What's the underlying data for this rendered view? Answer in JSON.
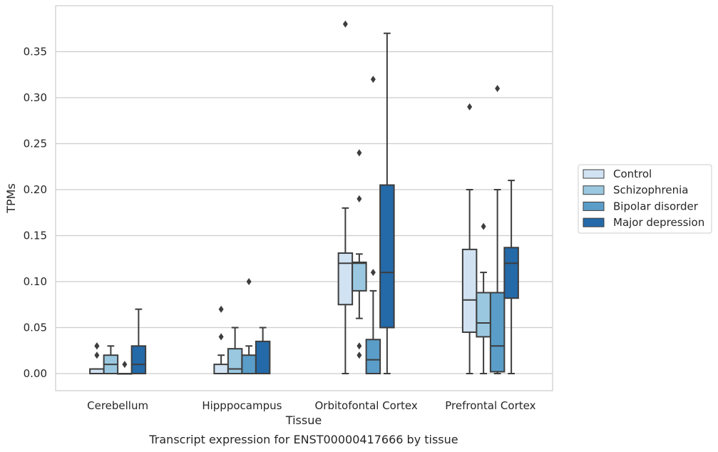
{
  "chart_data": {
    "type": "box",
    "xlabel": "Tissue",
    "ylabel": "TPMs",
    "caption": "Transcript expression for ENST00000417666 by tissue",
    "ylim": [
      -0.018,
      0.398
    ],
    "yticks": [
      "0.00",
      "0.05",
      "0.10",
      "0.15",
      "0.20",
      "0.25",
      "0.30",
      "0.35"
    ],
    "grid": "horizontal",
    "legend_position": "right",
    "categories": [
      "Cerebellum",
      "Hipppocampus",
      "Orbitofontal Cortex",
      "Prefrontal Cortex"
    ],
    "series": [
      {
        "name": "Control",
        "color": "#d1e2f2",
        "boxes": [
          {
            "q1": 0.0,
            "median": 0.0,
            "q3": 0.005,
            "whislo": 0.0,
            "whishi": 0.005,
            "fliers": [
              0.03,
              0.02,
              0.03
            ]
          },
          {
            "q1": 0.0,
            "median": 0.0,
            "q3": 0.01,
            "whislo": 0.0,
            "whishi": 0.02,
            "fliers": [
              0.04,
              0.07
            ]
          },
          {
            "q1": 0.075,
            "median": 0.12,
            "q3": 0.131,
            "whislo": 0.0,
            "whishi": 0.18,
            "fliers": [
              0.38
            ]
          },
          {
            "q1": 0.045,
            "median": 0.08,
            "q3": 0.135,
            "whislo": 0.0,
            "whishi": 0.2,
            "fliers": [
              0.29
            ]
          }
        ]
      },
      {
        "name": "Schizophrenia",
        "color": "#9ac8e0",
        "boxes": [
          {
            "q1": 0.0,
            "median": 0.01,
            "q3": 0.02,
            "whislo": 0.0,
            "whishi": 0.03,
            "fliers": []
          },
          {
            "q1": 0.0,
            "median": 0.005,
            "q3": 0.027,
            "whislo": 0.0,
            "whishi": 0.05,
            "fliers": []
          },
          {
            "q1": 0.09,
            "median": 0.12,
            "q3": 0.121,
            "whislo": 0.06,
            "whishi": 0.13,
            "fliers": [
              0.24,
              0.19,
              0.03,
              0.02
            ]
          },
          {
            "q1": 0.04,
            "median": 0.055,
            "q3": 0.088,
            "whislo": 0.0,
            "whishi": 0.11,
            "fliers": [
              0.16
            ]
          }
        ]
      },
      {
        "name": "Bipolar disorder",
        "color": "#5a9dc9",
        "boxes": [
          {
            "q1": 0.0,
            "median": 0.0,
            "q3": 0.0,
            "whislo": 0.0,
            "whishi": 0.0,
            "fliers": [
              0.01
            ]
          },
          {
            "q1": 0.0,
            "median": 0.0,
            "q3": 0.02,
            "whislo": 0.0,
            "whishi": 0.03,
            "fliers": [
              0.1
            ]
          },
          {
            "q1": 0.0,
            "median": 0.015,
            "q3": 0.037,
            "whislo": 0.0,
            "whishi": 0.09,
            "fliers": [
              0.32,
              0.11
            ]
          },
          {
            "q1": 0.002,
            "median": 0.03,
            "q3": 0.088,
            "whislo": 0.0,
            "whishi": 0.2,
            "fliers": [
              0.31
            ]
          }
        ]
      },
      {
        "name": "Major depression",
        "color": "#2469a8",
        "boxes": [
          {
            "q1": 0.0,
            "median": 0.01,
            "q3": 0.03,
            "whislo": 0.0,
            "whishi": 0.07,
            "fliers": []
          },
          {
            "q1": 0.0,
            "median": 0.0,
            "q3": 0.035,
            "whislo": 0.0,
            "whishi": 0.05,
            "fliers": []
          },
          {
            "q1": 0.05,
            "median": 0.11,
            "q3": 0.205,
            "whislo": 0.0,
            "whishi": 0.37,
            "fliers": []
          },
          {
            "q1": 0.082,
            "median": 0.12,
            "q3": 0.137,
            "whislo": 0.0,
            "whishi": 0.21,
            "fliers": []
          }
        ]
      }
    ]
  }
}
